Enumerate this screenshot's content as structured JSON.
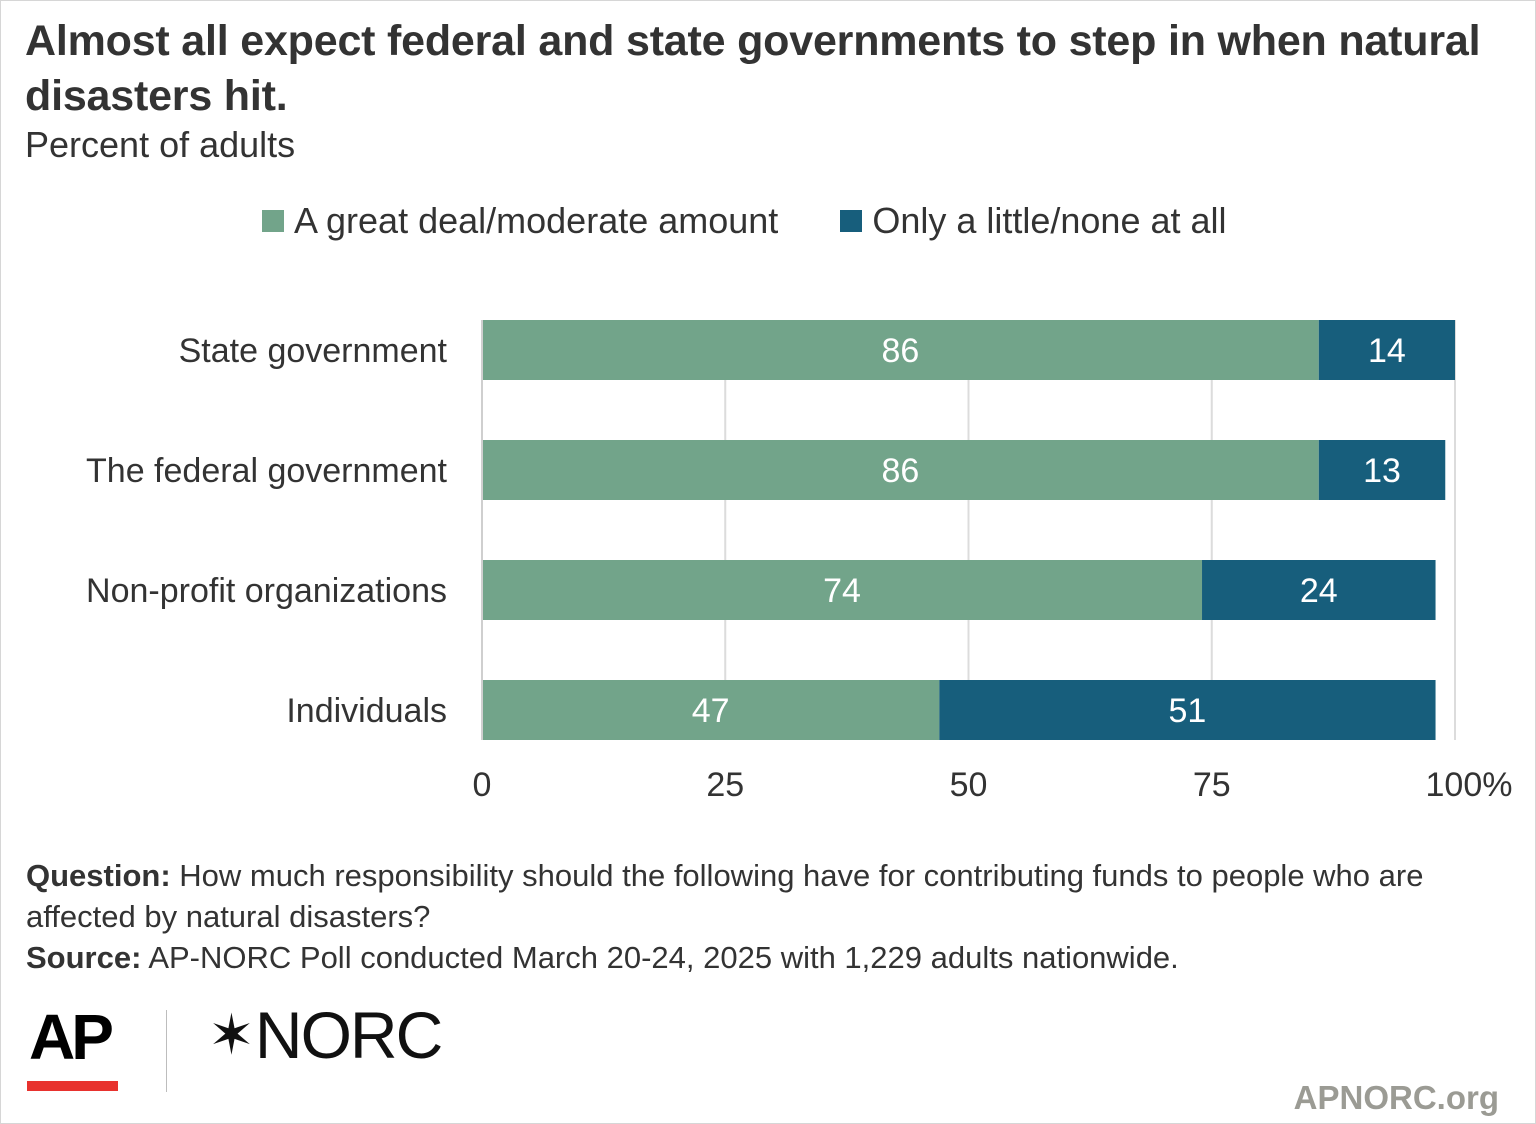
{
  "header": {
    "title": "Almost all expect federal and state governments to step in when natural disasters hit.",
    "subtitle": "Percent of adults"
  },
  "colors": {
    "great_deal": "#72a48a",
    "little_none": "#175e7c",
    "grid": "#dcdcdc"
  },
  "chart_data": {
    "type": "bar",
    "orientation": "horizontal",
    "stacked": true,
    "categories": [
      "State government",
      "The federal government",
      "Non-profit organizations",
      "Individuals"
    ],
    "series": [
      {
        "name": "A great deal/moderate amount",
        "values": [
          86,
          86,
          74,
          47
        ],
        "color": "#72a48a"
      },
      {
        "name": "Only a little/none at all",
        "values": [
          14,
          13,
          24,
          51
        ],
        "color": "#175e7c"
      }
    ],
    "xlim": [
      0,
      100
    ],
    "xticks": [
      0,
      25,
      50,
      75,
      100
    ],
    "xtick_labels": [
      "0",
      "25",
      "50",
      "75",
      "100%"
    ],
    "grid": true,
    "legend_position": "top"
  },
  "notes": {
    "question_label": "Question:",
    "question_text": "How much responsibility should the following have for contributing funds to people who are affected by natural disasters?",
    "source_label": "Source:",
    "source_text": "AP-NORC Poll conducted March 20-24, 2025 with 1,229 adults nationwide."
  },
  "logos": {
    "ap": "AP",
    "norc_star": "✶",
    "norc": "NORC"
  },
  "footer": {
    "url": "APNORC.org"
  }
}
